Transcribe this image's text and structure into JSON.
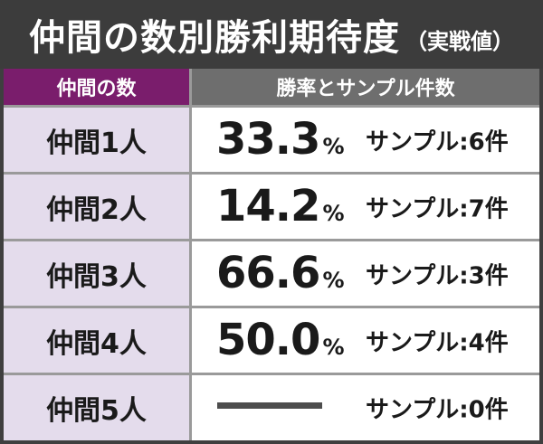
{
  "title": {
    "main": "仲間の数別勝利期待度",
    "sub": "（実戦値）"
  },
  "headers": {
    "members": "仲間の数",
    "rate": "勝率とサンプル件数"
  },
  "rows": [
    {
      "label": "仲間1人",
      "rate": "33.3",
      "pct": "%",
      "sample": "サンプル:6件"
    },
    {
      "label": "仲間2人",
      "rate": "14.2",
      "pct": "%",
      "sample": "サンプル:7件"
    },
    {
      "label": "仲間3人",
      "rate": "66.6",
      "pct": "%",
      "sample": "サンプル:3件"
    },
    {
      "label": "仲間4人",
      "rate": "50.0",
      "pct": "%",
      "sample": "サンプル:4件"
    },
    {
      "label": "仲間5人",
      "rate": null,
      "pct": null,
      "sample": "サンプル:0件"
    }
  ]
}
